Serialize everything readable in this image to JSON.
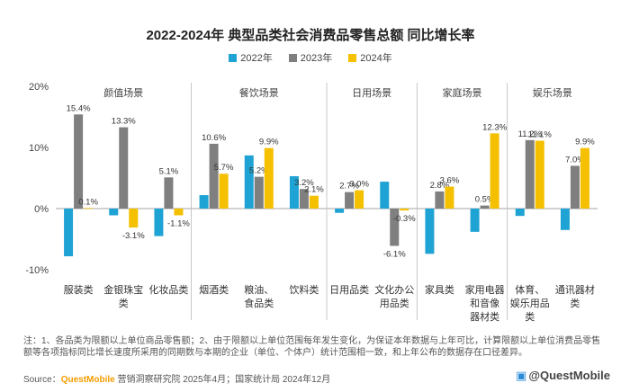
{
  "chart_data": {
    "type": "bar",
    "title": "2022-2024年 典型品类社会消费品零售总额 同比增长率",
    "ylim": [
      -10,
      20
    ],
    "yticks": [
      "20%",
      "10%",
      "0%",
      "-10%"
    ],
    "ytick_values": [
      20,
      10,
      0,
      -10
    ],
    "legend_position": "top-center",
    "grid": false,
    "series": [
      {
        "name": "2022年",
        "color": "#1fa3d4",
        "values": [
          -7.8,
          -1.1,
          -4.5,
          2.2,
          8.7,
          5.3,
          -0.7,
          4.4,
          -7.4,
          -3.8,
          -1.2,
          -3.5
        ]
      },
      {
        "name": "2023年",
        "color": "#7f7f7f",
        "values": [
          15.4,
          13.3,
          5.1,
          10.6,
          5.2,
          3.2,
          2.7,
          -6.1,
          2.8,
          0.5,
          11.2,
          7.0
        ]
      },
      {
        "name": "2024年",
        "color": "#f5c000",
        "values": [
          0.1,
          -3.1,
          -1.1,
          5.7,
          9.9,
          2.1,
          3.0,
          -0.3,
          3.6,
          12.3,
          11.1,
          9.9
        ]
      }
    ],
    "data_labels": [
      [
        "",
        "",
        "",
        "",
        "",
        "",
        "",
        "",
        "",
        "",
        "",
        ""
      ],
      [
        "15.4%",
        "13.3%",
        "5.1%",
        "10.6%",
        "5.2%",
        "3.2%",
        "2.7%",
        "-6.1%",
        "2.8%",
        "0.5%",
        "11.2%",
        "7.0%"
      ],
      [
        "0.1%",
        "-3.1%",
        "-1.1%",
        "5.7%",
        "9.9%",
        "2.1%",
        "3.0%",
        "-0.3%",
        "3.6%",
        "12.3%",
        "11.1%",
        "9.9%"
      ]
    ],
    "categories": [
      [
        "服装类"
      ],
      [
        "金银珠宝",
        "类"
      ],
      [
        "化妆品类"
      ],
      [
        "烟酒类"
      ],
      [
        "粮油、",
        "食品类"
      ],
      [
        "饮料类"
      ],
      [
        "日用品类"
      ],
      [
        "文化办公",
        "用品类"
      ],
      [
        "家具类"
      ],
      [
        "家用电器",
        "和音像",
        "器材类"
      ],
      [
        "体育、",
        "娱乐用品",
        "类"
      ],
      [
        "通讯器材",
        "类"
      ]
    ],
    "groups": [
      {
        "name": "颜值场景",
        "span": [
          0,
          2
        ]
      },
      {
        "name": "餐饮场景",
        "span": [
          3,
          5
        ]
      },
      {
        "name": "日用场景",
        "span": [
          6,
          7
        ]
      },
      {
        "name": "家庭场景",
        "span": [
          8,
          9
        ]
      },
      {
        "name": "娱乐场景",
        "span": [
          10,
          11
        ]
      }
    ]
  },
  "footer": {
    "note": "注：1、各品类为限额以上单位商品零售额；2、由于限额以上单位范围每年发生变化，为保证本年数据与上年可比，计算限额以上单位消费品零售额等各项指标同比增长速度所采用的同期数与本期的企业（单位、个体户）统计范围相一致，和上年公布的数据存在口径差异。",
    "source_prefix": "Source：",
    "source_brand": "QuestMobile",
    "source_rest": " 营销洞察研究院 2025年4月；国家统计局 2024年12月",
    "watermark": "@QuestMobile"
  }
}
